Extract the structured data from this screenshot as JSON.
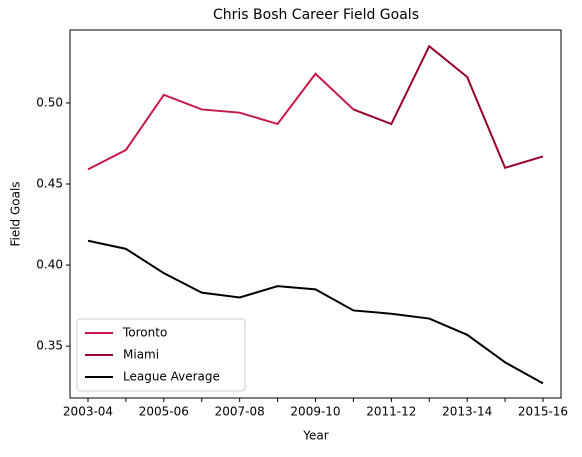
{
  "chart_data": {
    "type": "line",
    "title": "Chris Bosh Career Field Goals",
    "x_label": "Year",
    "y_label": "Field Goals",
    "categories": [
      "2003-04",
      null,
      "2005-06",
      null,
      "2007-08",
      null,
      "2009-10",
      null,
      "2011-12",
      null,
      "2013-14",
      null,
      "2015-16"
    ],
    "series": [
      {
        "name": "Toronto",
        "color": "#c8184a",
        "values": [
          0.459,
          0.471,
          0.505,
          0.496,
          0.494,
          0.487,
          0.518,
          0.496,
          null,
          null,
          null,
          null,
          null
        ]
      },
      {
        "name": "Miami",
        "color": "#98002e",
        "values": [
          null,
          null,
          null,
          null,
          null,
          null,
          null,
          0.496,
          0.487,
          0.535,
          0.516,
          0.46,
          0.467
        ]
      },
      {
        "name": "League Average",
        "color": "#000000",
        "values": [
          0.415,
          0.41,
          0.395,
          0.383,
          0.38,
          0.387,
          0.385,
          0.372,
          0.37,
          0.367,
          0.357,
          0.34,
          0.327
        ]
      }
    ],
    "ylim": [
      0.318,
      0.545
    ],
    "yticks": [
      0.35,
      {
        "value": 0.4,
        "label": "0.40"
      },
      0.45,
      {
        "value": 0.5,
        "label": "0.50"
      }
    ],
    "legend": "lower left"
  }
}
